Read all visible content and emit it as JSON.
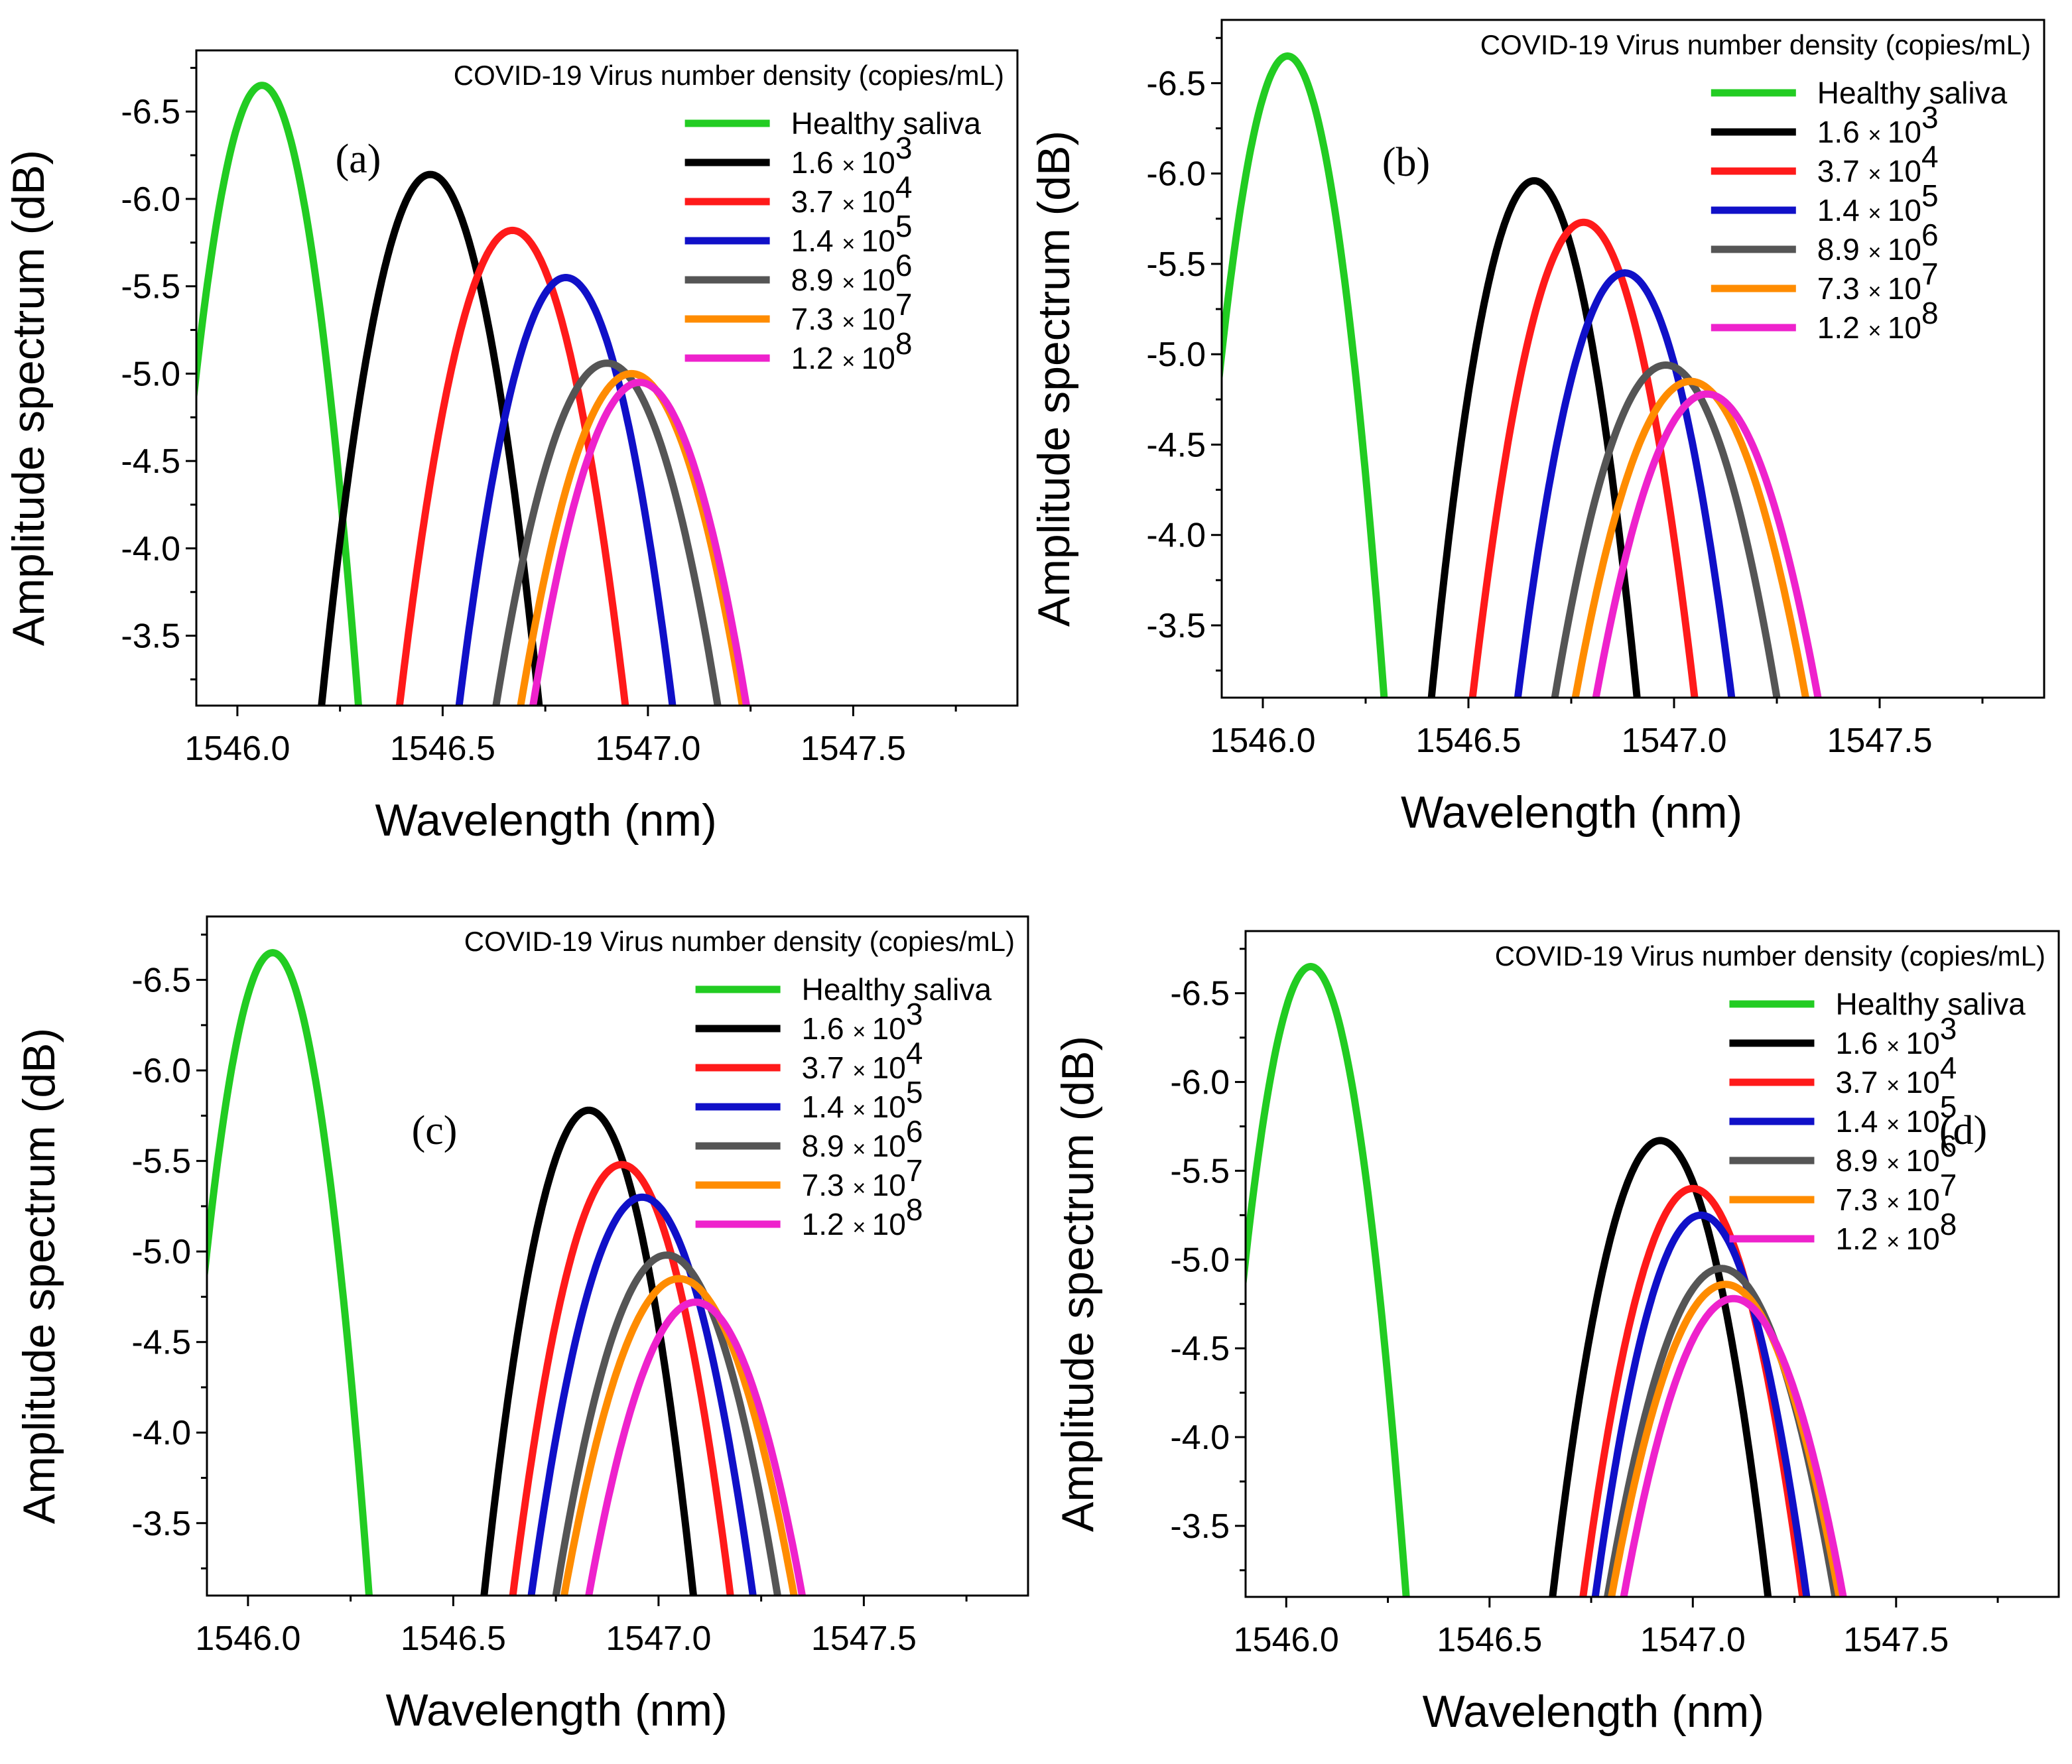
{
  "figure": {
    "legend_title": "COVID-19 Virus number density (copies/mL)",
    "xlabel": "Wavelength (nm)",
    "ylabel": "Amplitude spectrum (dB)"
  },
  "colors": {
    "healthy": "#22cc22",
    "c1": "#000000",
    "c2": "#ff1a1a",
    "c3": "#1010c8",
    "c4": "#555555",
    "c5": "#ff8c00",
    "c6": "#ee22cc"
  },
  "legend_entries": [
    {
      "key": "healthy",
      "label": "Healthy saliva",
      "mult": "",
      "base": "",
      "exp": ""
    },
    {
      "key": "c1",
      "label": "",
      "mult": "1.6",
      "base": "10",
      "exp": "3"
    },
    {
      "key": "c2",
      "label": "",
      "mult": "3.7",
      "base": "10",
      "exp": "4"
    },
    {
      "key": "c3",
      "label": "",
      "mult": "1.4",
      "base": "10",
      "exp": "5"
    },
    {
      "key": "c4",
      "label": "",
      "mult": "8.9",
      "base": "10",
      "exp": "6"
    },
    {
      "key": "c5",
      "label": "",
      "mult": "7.3",
      "base": "10",
      "exp": "7"
    },
    {
      "key": "c6",
      "label": "",
      "mult": "1.2",
      "base": "10",
      "exp": "8"
    }
  ],
  "chart_data": [
    {
      "type": "line",
      "panel_label": "(a)",
      "xlabel": "Wavelength (nm)",
      "ylabel": "Amplitude spectrum (dB)",
      "xlim": [
        1545.9,
        1547.9
      ],
      "ylim": [
        -3.1,
        -6.85
      ],
      "xticks": [
        "1546.0",
        "1546.5",
        "1547.0",
        "1547.5"
      ],
      "yticks": [
        "-3.5",
        "-4.0",
        "-4.5",
        "-5.0",
        "-5.5",
        "-6.0",
        "-6.5"
      ],
      "series": [
        {
          "name": "Healthy saliva",
          "key": "healthy",
          "peak_x": 1546.06,
          "peak_y": -6.65,
          "half_width": 0.235
        },
        {
          "name": "1.6 × 10^3",
          "key": "c1",
          "peak_x": 1546.47,
          "peak_y": -6.14,
          "half_width": 0.265
        },
        {
          "name": "3.7 × 10^4",
          "key": "c2",
          "peak_x": 1546.67,
          "peak_y": -5.82,
          "half_width": 0.275
        },
        {
          "name": "1.4 × 10^5",
          "key": "c3",
          "peak_x": 1546.8,
          "peak_y": -5.55,
          "half_width": 0.26
        },
        {
          "name": "8.9 × 10^6",
          "key": "c4",
          "peak_x": 1546.9,
          "peak_y": -5.06,
          "half_width": 0.27
        },
        {
          "name": "7.3 × 10^7",
          "key": "c5",
          "peak_x": 1546.96,
          "peak_y": -5.0,
          "half_width": 0.27
        },
        {
          "name": "1.2 × 10^8",
          "key": "c6",
          "peak_x": 1546.98,
          "peak_y": -4.95,
          "half_width": 0.26
        }
      ]
    },
    {
      "type": "line",
      "panel_label": "(b)",
      "xlabel": "Wavelength (nm)",
      "ylabel": "Amplitude spectrum (dB)",
      "xlim": [
        1545.9,
        1547.9
      ],
      "ylim": [
        -3.1,
        -6.85
      ],
      "xticks": [
        "1546.0",
        "1546.5",
        "1547.0",
        "1547.5"
      ],
      "yticks": [
        "-3.5",
        "-4.0",
        "-4.5",
        "-5.0",
        "-5.5",
        "-6.0",
        "-6.5"
      ],
      "series": [
        {
          "name": "Healthy saliva",
          "key": "healthy",
          "peak_x": 1546.06,
          "peak_y": -6.65,
          "half_width": 0.235
        },
        {
          "name": "1.6 × 10^3",
          "key": "c1",
          "peak_x": 1546.66,
          "peak_y": -5.96,
          "half_width": 0.25
        },
        {
          "name": "3.7 × 10^4",
          "key": "c2",
          "peak_x": 1546.78,
          "peak_y": -5.73,
          "half_width": 0.27
        },
        {
          "name": "1.4 × 10^5",
          "key": "c3",
          "peak_x": 1546.88,
          "peak_y": -5.45,
          "half_width": 0.26
        },
        {
          "name": "8.9 × 10^6",
          "key": "c4",
          "peak_x": 1546.98,
          "peak_y": -4.94,
          "half_width": 0.27
        },
        {
          "name": "7.3 × 10^7",
          "key": "c5",
          "peak_x": 1547.04,
          "peak_y": -4.85,
          "half_width": 0.28
        },
        {
          "name": "1.2 × 10^8",
          "key": "c6",
          "peak_x": 1547.08,
          "peak_y": -4.78,
          "half_width": 0.27
        }
      ]
    },
    {
      "type": "line",
      "panel_label": "(c)",
      "xlabel": "Wavelength (nm)",
      "ylabel": "Amplitude spectrum (dB)",
      "xlim": [
        1545.9,
        1547.9
      ],
      "ylim": [
        -3.1,
        -6.85
      ],
      "xticks": [
        "1546.0",
        "1546.5",
        "1547.0",
        "1547.5"
      ],
      "yticks": [
        "-3.5",
        "-4.0",
        "-4.5",
        "-5.0",
        "-5.5",
        "-6.0",
        "-6.5"
      ],
      "series": [
        {
          "name": "Healthy saliva",
          "key": "healthy",
          "peak_x": 1546.06,
          "peak_y": -6.65,
          "half_width": 0.235
        },
        {
          "name": "1.6 × 10^3",
          "key": "c1",
          "peak_x": 1546.83,
          "peak_y": -5.78,
          "half_width": 0.255
        },
        {
          "name": "3.7 × 10^4",
          "key": "c2",
          "peak_x": 1546.91,
          "peak_y": -5.48,
          "half_width": 0.265
        },
        {
          "name": "1.4 × 10^5",
          "key": "c3",
          "peak_x": 1546.96,
          "peak_y": -5.3,
          "half_width": 0.27
        },
        {
          "name": "8.9 × 10^6",
          "key": "c4",
          "peak_x": 1547.02,
          "peak_y": -4.98,
          "half_width": 0.27
        },
        {
          "name": "7.3 × 10^7",
          "key": "c5",
          "peak_x": 1547.05,
          "peak_y": -4.85,
          "half_width": 0.28
        },
        {
          "name": "1.2 × 10^8",
          "key": "c6",
          "peak_x": 1547.09,
          "peak_y": -4.72,
          "half_width": 0.26
        }
      ]
    },
    {
      "type": "line",
      "panel_label": "(d)",
      "xlabel": "Wavelength (nm)",
      "ylabel": "Amplitude spectrum (dB)",
      "xlim": [
        1545.9,
        1547.9
      ],
      "ylim": [
        -3.1,
        -6.85
      ],
      "xticks": [
        "1546.0",
        "1546.5",
        "1547.0",
        "1547.5"
      ],
      "yticks": [
        "-3.5",
        "-4.0",
        "-4.5",
        "-5.0",
        "-5.5",
        "-6.0",
        "-6.5"
      ],
      "series": [
        {
          "name": "Healthy saliva",
          "key": "healthy",
          "peak_x": 1546.06,
          "peak_y": -6.65,
          "half_width": 0.235
        },
        {
          "name": "1.6 × 10^3",
          "key": "c1",
          "peak_x": 1546.92,
          "peak_y": -5.67,
          "half_width": 0.265
        },
        {
          "name": "3.7 × 10^4",
          "key": "c2",
          "peak_x": 1547.0,
          "peak_y": -5.4,
          "half_width": 0.27
        },
        {
          "name": "1.4 × 10^5",
          "key": "c3",
          "peak_x": 1547.02,
          "peak_y": -5.25,
          "half_width": 0.26
        },
        {
          "name": "8.9 × 10^6",
          "key": "c4",
          "peak_x": 1547.07,
          "peak_y": -4.95,
          "half_width": 0.28
        },
        {
          "name": "7.3 × 10^7",
          "key": "c5",
          "peak_x": 1547.08,
          "peak_y": -4.86,
          "half_width": 0.28
        },
        {
          "name": "1.2 × 10^8",
          "key": "c6",
          "peak_x": 1547.1,
          "peak_y": -4.78,
          "half_width": 0.27
        }
      ]
    }
  ]
}
